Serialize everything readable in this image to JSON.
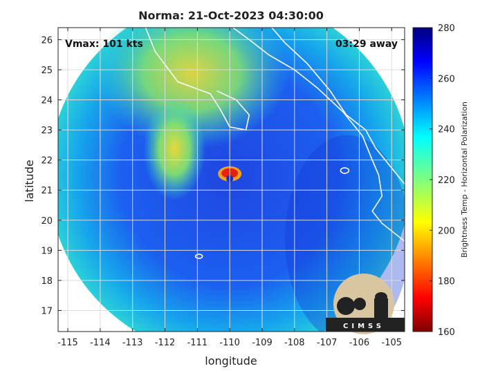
{
  "chart_data": {
    "type": "heatmap",
    "title": "Norma: 21-Oct-2023 04:30:00",
    "annotation_left": "Vmax: 101 kts",
    "annotation_right": "03:29 away",
    "xlabel": "longitude",
    "ylabel": "latitude",
    "xlim": [
      -115.3,
      -104.6
    ],
    "ylim": [
      16.3,
      26.4
    ],
    "x_ticks": [
      -115,
      -114,
      -113,
      -112,
      -111,
      -110,
      -109,
      -108,
      -107,
      -106,
      -105
    ],
    "y_ticks": [
      17,
      18,
      19,
      20,
      21,
      22,
      23,
      24,
      25,
      26
    ],
    "grid": true,
    "colorbar": {
      "label": "Brightness Temp - Horizontal Polarization",
      "min": 160,
      "max": 280,
      "ticks": [
        160,
        180,
        200,
        220,
        240,
        260,
        280
      ],
      "colormap": "jet"
    },
    "storm_center": {
      "lon": -110.0,
      "lat": 21.45
    },
    "swath_center": {
      "lon": -110.0,
      "lat": 21.45
    },
    "logo_text": "CIMSS"
  }
}
